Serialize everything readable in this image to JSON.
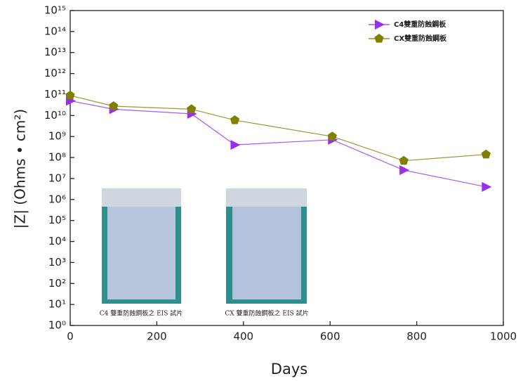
{
  "chart_data": {
    "type": "line",
    "x_label": "Days",
    "y_label": "|Z| (Ohms • cm²)",
    "x": [
      0,
      100,
      280,
      380,
      605,
      770,
      960
    ],
    "series": [
      {
        "name": "C4雙重防蝕鋼板",
        "color": "#9a2ef0",
        "marker": "triangle-right",
        "values": [
          50000000000.0,
          20000000000.0,
          12000000000.0,
          400000000.0,
          700000000.0,
          25000000.0,
          4000000.0
        ]
      },
      {
        "name": "CX雙重防蝕鋼板",
        "color": "#808000",
        "marker": "pentagon",
        "values": [
          90000000000.0,
          28000000000.0,
          20000000000.0,
          6000000000.0,
          1000000000.0,
          70000000.0,
          140000000.0
        ]
      }
    ],
    "xlim": [
      0,
      1000
    ],
    "xticks": [
      0,
      200,
      400,
      600,
      800,
      1000
    ],
    "ylim": [
      1,
      1000000000000000.0
    ],
    "log_y": true,
    "yticks": [
      {
        "value": 1,
        "label": "10⁰"
      },
      {
        "value": 10.0,
        "label": "10¹"
      },
      {
        "value": 100.0,
        "label": "10²"
      },
      {
        "value": 1000.0,
        "label": "10³"
      },
      {
        "value": 10000.0,
        "label": "10⁴"
      },
      {
        "value": 100000.0,
        "label": "10⁵"
      },
      {
        "value": 1000000.0,
        "label": "10⁶"
      },
      {
        "value": 10000000.0,
        "label": "10⁷"
      },
      {
        "value": 100000000.0,
        "label": "10⁸"
      },
      {
        "value": 1000000000.0,
        "label": "10⁹"
      },
      {
        "value": 10000000000.0,
        "label": "10¹⁰"
      },
      {
        "value": 100000000000.0,
        "label": "10¹¹"
      },
      {
        "value": 1000000000000.0,
        "label": "10¹²"
      },
      {
        "value": 10000000000000.0,
        "label": "10¹³"
      },
      {
        "value": 100000000000000.0,
        "label": "10¹⁴"
      },
      {
        "value": 1000000000000000.0,
        "label": "10¹⁵"
      }
    ],
    "legend": "upper-right",
    "annotations": [
      "C4 雙重防蝕鋼板之 EIS 試片",
      "CX 雙重防蝕鋼板之 EIS 試片"
    ]
  }
}
